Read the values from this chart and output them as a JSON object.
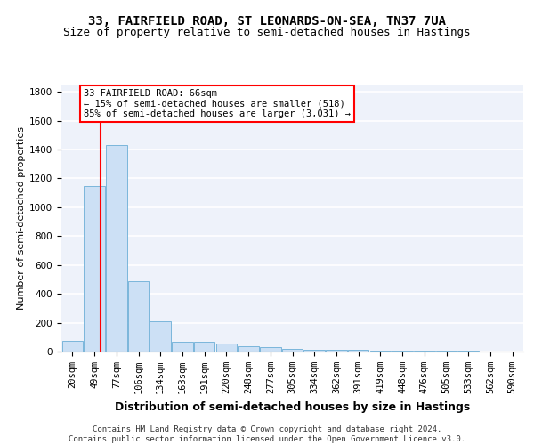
{
  "title1": "33, FAIRFIELD ROAD, ST LEONARDS-ON-SEA, TN37 7UA",
  "title2": "Size of property relative to semi-detached houses in Hastings",
  "xlabel": "Distribution of semi-detached houses by size in Hastings",
  "ylabel": "Number of semi-detached properties",
  "footnote": "Contains HM Land Registry data © Crown copyright and database right 2024.\nContains public sector information licensed under the Open Government Licence v3.0.",
  "bar_labels": [
    "20sqm",
    "49sqm",
    "77sqm",
    "106sqm",
    "134sqm",
    "163sqm",
    "191sqm",
    "220sqm",
    "248sqm",
    "277sqm",
    "305sqm",
    "334sqm",
    "362sqm",
    "391sqm",
    "419sqm",
    "448sqm",
    "476sqm",
    "505sqm",
    "533sqm",
    "562sqm",
    "590sqm"
  ],
  "bar_values": [
    75,
    1150,
    1430,
    490,
    210,
    70,
    65,
    55,
    40,
    30,
    20,
    15,
    13,
    10,
    8,
    7,
    5,
    5,
    4,
    3,
    2
  ],
  "bar_color": "#cce0f5",
  "bar_edge_color": "#6baed6",
  "red_line_x": 1.3,
  "annotation_text": "33 FAIRFIELD ROAD: 66sqm\n← 15% of semi-detached houses are smaller (518)\n85% of semi-detached houses are larger (3,031) →",
  "ylim": [
    0,
    1850
  ],
  "yticks": [
    0,
    200,
    400,
    600,
    800,
    1000,
    1200,
    1400,
    1600,
    1800
  ],
  "background_color": "#eef2fa",
  "grid_color": "white",
  "title1_fontsize": 10,
  "title2_fontsize": 9,
  "xlabel_fontsize": 9,
  "ylabel_fontsize": 8,
  "tick_fontsize": 7.5,
  "annotation_fontsize": 7.5,
  "footnote_fontsize": 6.5
}
